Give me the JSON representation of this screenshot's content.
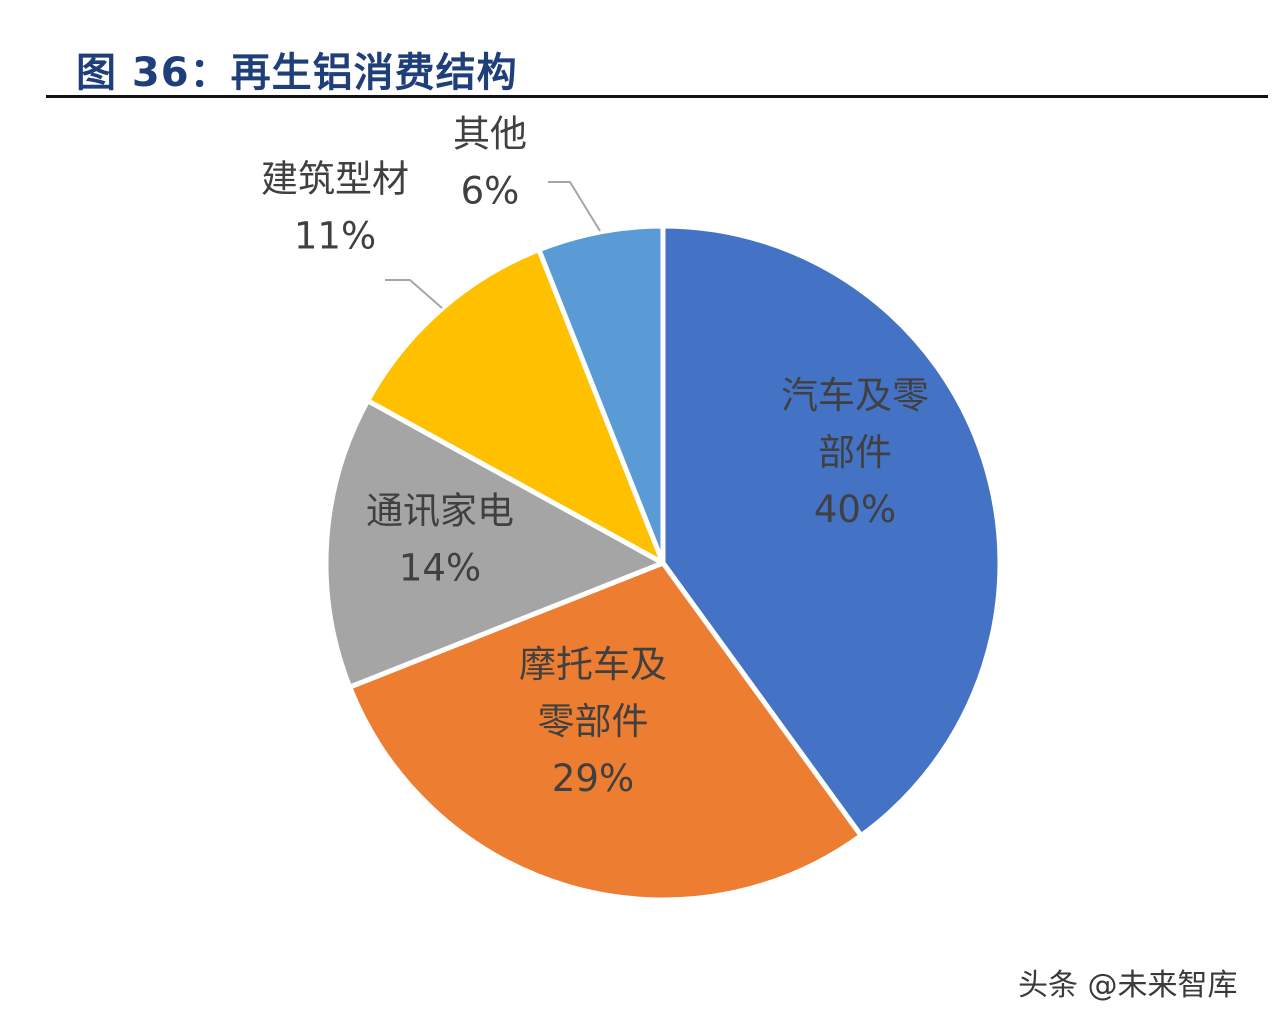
{
  "chart_data": {
    "type": "pie",
    "title": "图 36：再生铝消费结构",
    "slices": [
      {
        "label_lines": [
          "汽车及零",
          "部件"
        ],
        "value": 40,
        "value_label": "40%",
        "color": "#4472c4"
      },
      {
        "label_lines": [
          "摩托车及",
          "零部件"
        ],
        "value": 29,
        "value_label": "29%",
        "color": "#ed7d31"
      },
      {
        "label_lines": [
          "通讯家电"
        ],
        "value": 14,
        "value_label": "14%",
        "color": "#a5a5a5"
      },
      {
        "label_lines": [
          "建筑型材"
        ],
        "value": 11,
        "value_label": "11%",
        "color": "#ffc000"
      },
      {
        "label_lines": [
          "其他"
        ],
        "value": 6,
        "value_label": "6%",
        "color": "#5b9bd5"
      }
    ],
    "start_angle_deg": 0,
    "direction": "clockwise",
    "legend": "none"
  },
  "watermark": "头条 @未来智库"
}
